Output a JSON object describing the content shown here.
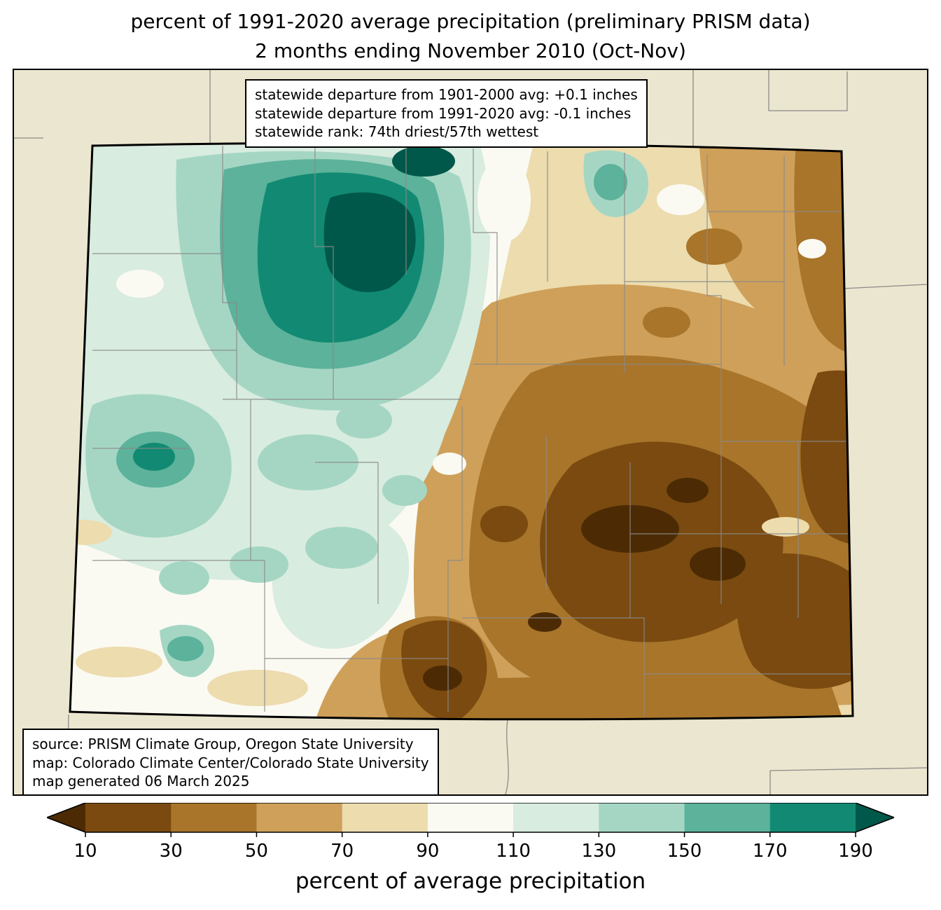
{
  "title": {
    "line1": "percent of 1991-2020 average precipitation (preliminary PRISM data)",
    "line2": "2 months ending November 2010 (Oct-Nov)"
  },
  "stats_box": {
    "line1": "statewide departure from 1901-2000 avg: +0.1 inches",
    "line2": "statewide departure from 1991-2020 avg: -0.1 inches",
    "line3": "statewide rank: 74th driest/57th wettest"
  },
  "source_box": {
    "line1": "source: PRISM Climate Group, Oregon State University",
    "line2": "map: Colorado Climate Center/Colorado State University",
    "line3": "map generated 06 March 2025"
  },
  "colorbar": {
    "title": "percent of average precipitation",
    "tick_labels": [
      "10",
      "30",
      "50",
      "70",
      "90",
      "110",
      "130",
      "150",
      "170",
      "190"
    ],
    "arrow_left_color": "#4c2b04",
    "arrow_right_color": "#00584a",
    "segment_colors": [
      "#7a4a10",
      "#a9752a",
      "#cfa05a",
      "#ecdcae",
      "#fbfaf2",
      "#d8ecdf",
      "#a5d6c4",
      "#5cb29a",
      "#128a73"
    ]
  },
  "palette": {
    "frame_background": "#ebe6cf",
    "base_white": "#fbfaf2",
    "cream": "#ecdcae",
    "tan": "#cfa05a",
    "brown": "#a9752a",
    "dark_brown": "#7a4a10",
    "darkest_brown": "#4c2b04",
    "mint": "#d8ecdf",
    "light_teal": "#a5d6c4",
    "teal": "#5cb29a",
    "deep_teal": "#128a73",
    "darkest_teal": "#00584a",
    "county_line": "#8a8a8a",
    "neighbor_line": "#8a8a8a",
    "state_border": "#000000"
  }
}
